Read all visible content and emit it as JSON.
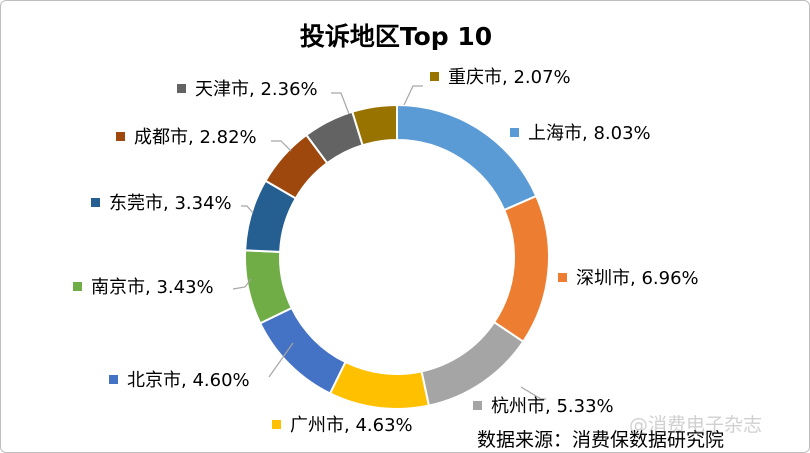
{
  "chart_data": {
    "type": "pie",
    "variant": "donut",
    "title": "投诉地区Top 10",
    "start": "top, clockwise",
    "categories": [
      "上海市",
      "深圳市",
      "杭州市",
      "广州市",
      "北京市",
      "南京市",
      "东莞市",
      "成都市",
      "天津市",
      "重庆市"
    ],
    "values": [
      8.03,
      6.96,
      5.33,
      4.63,
      4.6,
      3.43,
      3.34,
      2.82,
      2.36,
      2.07
    ],
    "labels": [
      "上海市, 8.03%",
      "深圳市, 6.96%",
      "杭州市, 5.33%",
      "广州市, 4.63%",
      "北京市, 4.60%",
      "南京市, 3.43%",
      "东莞市, 3.34%",
      "成都市, 2.82%",
      "天津市, 2.36%",
      "重庆市, 2.07%"
    ],
    "colors": [
      "#5B9BD5",
      "#ED7D31",
      "#A5A5A5",
      "#FFC000",
      "#4472C4",
      "#70AD47",
      "#255E91",
      "#9E480E",
      "#636363",
      "#997300"
    ]
  },
  "source": "数据来源：消费保数据研究院",
  "watermark": "@消费电子杂志"
}
